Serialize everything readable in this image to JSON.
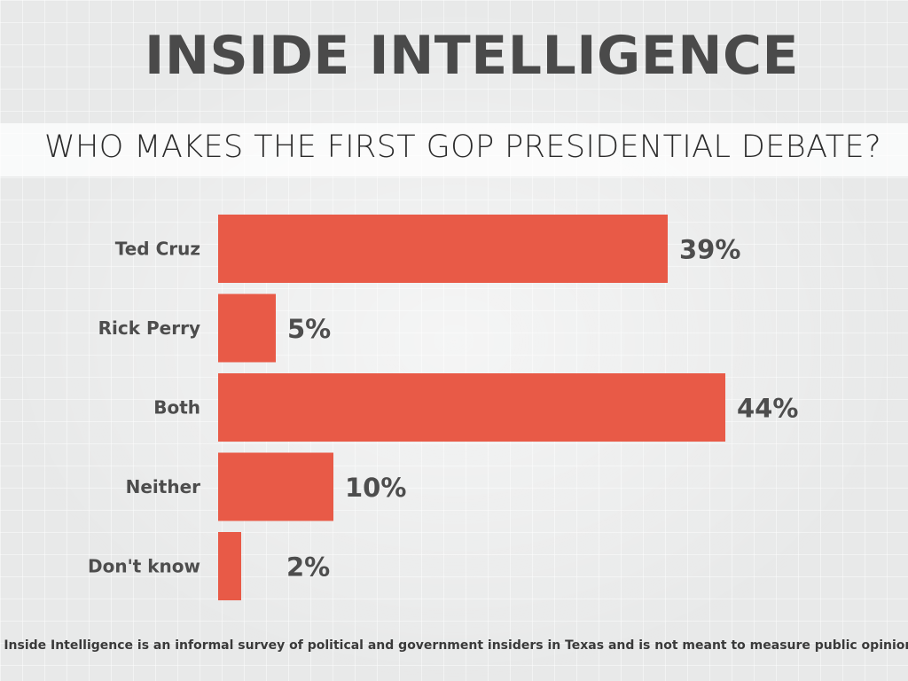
{
  "header": {
    "title": "INSIDE INTELLIGENCE",
    "subtitle": "WHO MAKES THE FIRST GOP PRESIDENTIAL DEBATE?"
  },
  "chart_data": {
    "type": "bar",
    "orientation": "horizontal",
    "title": "WHO MAKES THE FIRST GOP PRESIDENTIAL DEBATE?",
    "categories": [
      "Ted Cruz",
      "Rick Perry",
      "Both",
      "Neither",
      "Don't know"
    ],
    "values": [
      39,
      5,
      44,
      10,
      2
    ],
    "value_labels": [
      "39%",
      "5%",
      "44%",
      "10%",
      "2%"
    ],
    "xlim": [
      0,
      50
    ],
    "unit": "%",
    "bar_color": "#e85a47",
    "grid": false,
    "legend": "none"
  },
  "footnote": "Inside Intelligence is an informal survey of political and government insiders in Texas and is not meant to measure public opinion."
}
